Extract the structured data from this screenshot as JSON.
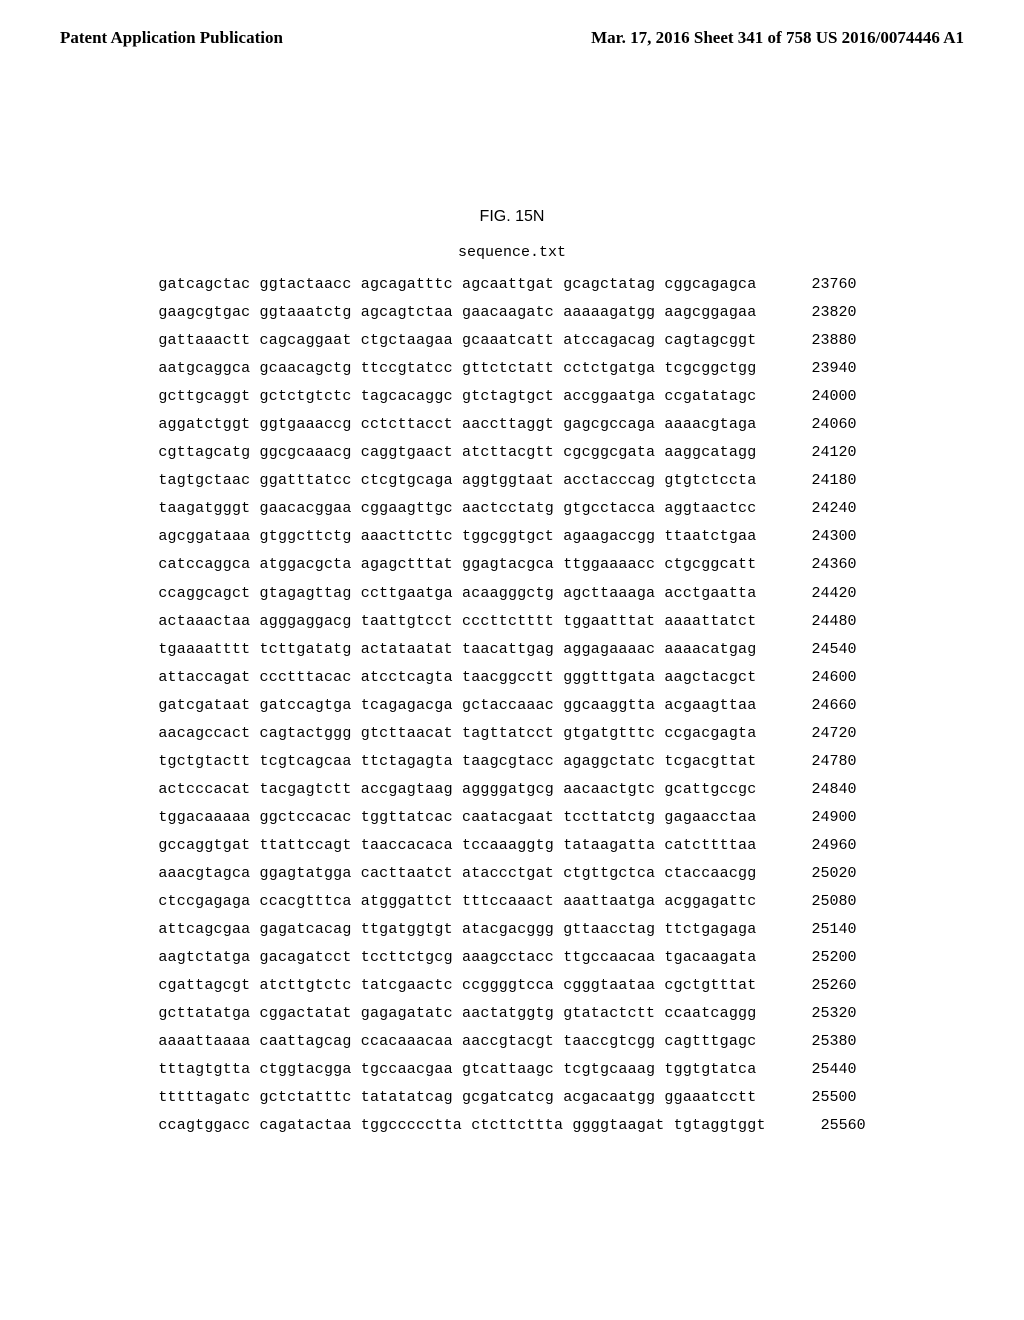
{
  "header": {
    "left": "Patent Application Publication",
    "right": "Mar. 17, 2016  Sheet 341 of 758   US 2016/0074446 A1"
  },
  "figure": {
    "title": "FIG. 15N",
    "filename": "sequence.txt"
  },
  "sequence": {
    "rows": [
      {
        "groups": [
          "gatcagctac",
          "ggtactaacc",
          "agcagatttc",
          "agcaattgat",
          "gcagctatag",
          "cggcagagca"
        ],
        "pos": "23760"
      },
      {
        "groups": [
          "gaagcgtgac",
          "ggtaaatctg",
          "agcagtctaa",
          "gaacaagatc",
          "aaaaagatgg",
          "aagcggagaa"
        ],
        "pos": "23820"
      },
      {
        "groups": [
          "gattaaactt",
          "cagcaggaat",
          "ctgctaagaa",
          "gcaaatcatt",
          "atccagacag",
          "cagtagcggt"
        ],
        "pos": "23880"
      },
      {
        "groups": [
          "aatgcaggca",
          "gcaacagctg",
          "ttccgtatcc",
          "gttctctatt",
          "cctctgatga",
          "tcgcggctgg"
        ],
        "pos": "23940"
      },
      {
        "groups": [
          "gcttgcaggt",
          "gctctgtctc",
          "tagcacaggc",
          "gtctagtgct",
          "accggaatga",
          "ccgatatagc"
        ],
        "pos": "24000"
      },
      {
        "groups": [
          "aggatctggt",
          "ggtgaaaccg",
          "cctcttacct",
          "aaccttaggt",
          "gagcgccaga",
          "aaaacgtaga"
        ],
        "pos": "24060"
      },
      {
        "groups": [
          "cgttagcatg",
          "ggcgcaaacg",
          "caggtgaact",
          "atcttacgtt",
          "cgcggcgata",
          "aaggcatagg"
        ],
        "pos": "24120"
      },
      {
        "groups": [
          "tagtgctaac",
          "ggatttatcc",
          "ctcgtgcaga",
          "aggtggtaat",
          "acctacccag",
          "gtgtctccta"
        ],
        "pos": "24180"
      },
      {
        "groups": [
          "taagatgggt",
          "gaacacggaa",
          "cggaagttgc",
          "aactcctatg",
          "gtgcctacca",
          "aggtaactcc"
        ],
        "pos": "24240"
      },
      {
        "groups": [
          "agcggataaa",
          "gtggcttctg",
          "aaacttcttc",
          "tggcggtgct",
          "agaagaccgg",
          "ttaatctgaa"
        ],
        "pos": "24300"
      },
      {
        "groups": [
          "catccaggca",
          "atggacgcta",
          "agagctttat",
          "ggagtacgca",
          "ttggaaaacc",
          "ctgcggcatt"
        ],
        "pos": "24360"
      },
      {
        "groups": [
          "ccaggcagct",
          "gtagagttag",
          "ccttgaatga",
          "acaagggctg",
          "agcttaaaga",
          "acctgaatta"
        ],
        "pos": "24420"
      },
      {
        "groups": [
          "actaaactaa",
          "agggaggacg",
          "taattgtcct",
          "cccttctttt",
          "tggaatttat",
          "aaaattatct"
        ],
        "pos": "24480"
      },
      {
        "groups": [
          "tgaaaatttt",
          "tcttgatatg",
          "actataatat",
          "taacattgag",
          "aggagaaaac",
          "aaaacatgag"
        ],
        "pos": "24540"
      },
      {
        "groups": [
          "attaccagat",
          "ccctttacac",
          "atcctcagta",
          "taacggcctt",
          "gggtttgata",
          "aagctacgct"
        ],
        "pos": "24600"
      },
      {
        "groups": [
          "gatcgataat",
          "gatccagtga",
          "tcagagacga",
          "gctaccaaac",
          "ggcaaggtta",
          "acgaagttaa"
        ],
        "pos": "24660"
      },
      {
        "groups": [
          "aacagccact",
          "cagtactggg",
          "gtcttaacat",
          "tagttatcct",
          "gtgatgtttc",
          "ccgacgagta"
        ],
        "pos": "24720"
      },
      {
        "groups": [
          "tgctgtactt",
          "tcgtcagcaa",
          "ttctagagta",
          "taagcgtacc",
          "agaggctatc",
          "tcgacgttat"
        ],
        "pos": "24780"
      },
      {
        "groups": [
          "actcccacat",
          "tacgagtctt",
          "accgagtaag",
          "aggggatgcg",
          "aacaactgtc",
          "gcattgccgc"
        ],
        "pos": "24840"
      },
      {
        "groups": [
          "tggacaaaaa",
          "ggctccacac",
          "tggttatcac",
          "caatacgaat",
          "tccttatctg",
          "gagaacctaa"
        ],
        "pos": "24900"
      },
      {
        "groups": [
          "gccaggtgat",
          "ttattccagt",
          "taaccacaca",
          "tccaaaggtg",
          "tataagatta",
          "catcttttaa"
        ],
        "pos": "24960"
      },
      {
        "groups": [
          "aaacgtagca",
          "ggagtatgga",
          "cacttaatct",
          "ataccctgat",
          "ctgttgctca",
          "ctaccaacgg"
        ],
        "pos": "25020"
      },
      {
        "groups": [
          "ctccgagaga",
          "ccacgtttca",
          "atgggattct",
          "tttccaaact",
          "aaattaatga",
          "acggagattc"
        ],
        "pos": "25080"
      },
      {
        "groups": [
          "attcagcgaa",
          "gagatcacag",
          "ttgatggtgt",
          "atacgacggg",
          "gttaacctag",
          "ttctgagaga"
        ],
        "pos": "25140"
      },
      {
        "groups": [
          "aagtctatga",
          "gacagatcct",
          "tccttctgcg",
          "aaagcctacc",
          "ttgccaacaa",
          "tgacaagata"
        ],
        "pos": "25200"
      },
      {
        "groups": [
          "cgattagcgt",
          "atcttgtctc",
          "tatcgaactc",
          "ccggggtcca",
          "cgggtaataa",
          "cgctgtttat"
        ],
        "pos": "25260"
      },
      {
        "groups": [
          "gcttatatga",
          "cggactatat",
          "gagagatatc",
          "aactatggtg",
          "gtatactctt",
          "ccaatcaggg"
        ],
        "pos": "25320"
      },
      {
        "groups": [
          "aaaattaaaa",
          "caattagcag",
          "ccacaaacaa",
          "aaccgtacgt",
          "taaccgtcgg",
          "cagtttgagc"
        ],
        "pos": "25380"
      },
      {
        "groups": [
          "tttagtgtta",
          "ctggtacgga",
          "tgccaacgaa",
          "gtcattaagc",
          "tcgtgcaaag",
          "tggtgtatca"
        ],
        "pos": "25440"
      },
      {
        "groups": [
          "tttttagatc",
          "gctctatttc",
          "tatatatcag",
          "gcgatcatcg",
          "acgacaatgg",
          "ggaaatcctt"
        ],
        "pos": "25500"
      },
      {
        "groups": [
          "ccagtggacc",
          "cagatactaa",
          "tggccccctta",
          "ctcttcttta",
          "ggggtaagat",
          "tgtaggtggt"
        ],
        "pos": "25560"
      }
    ]
  },
  "style": {
    "background_color": "#ffffff",
    "text_color": "#000000",
    "mono_font": "Courier New",
    "serif_font": "Times New Roman",
    "sans_font": "Arial",
    "body_fontsize": 15,
    "header_fontsize": 17,
    "figtitle_fontsize": 16
  }
}
